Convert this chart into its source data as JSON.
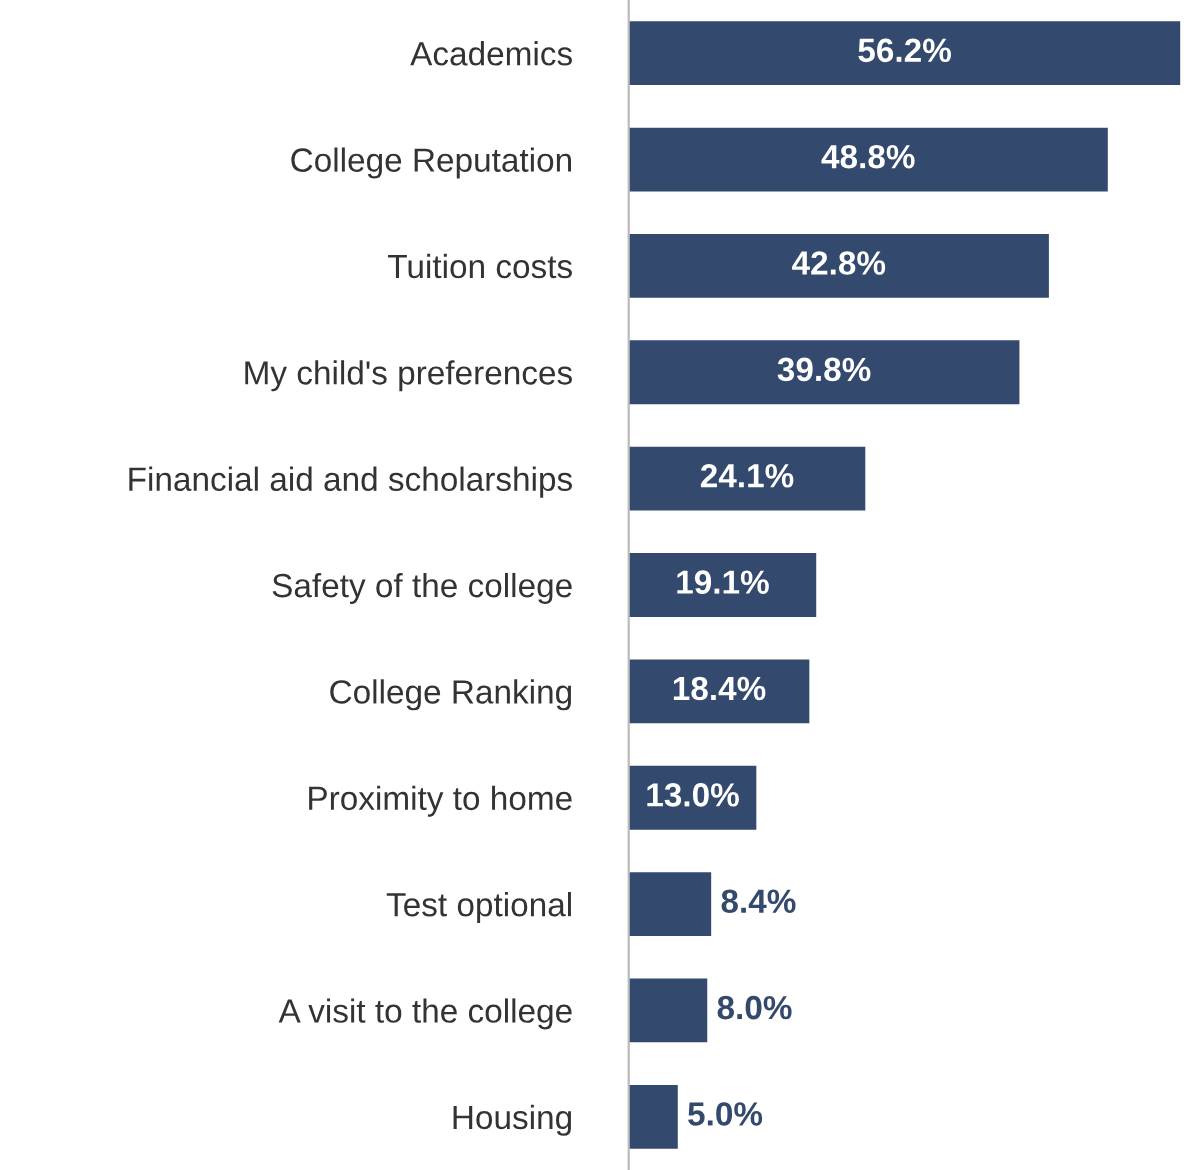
{
  "chart_data": {
    "type": "bar",
    "orientation": "horizontal",
    "categories": [
      "Academics",
      "College Reputation",
      "Tuition costs",
      "My child's preferences",
      "Financial aid and scholarships",
      "Safety of the college",
      "College Ranking",
      "Proximity to home",
      "Test optional",
      "A visit to the college",
      "Housing"
    ],
    "values": [
      56.2,
      48.8,
      42.8,
      39.8,
      24.1,
      19.1,
      18.4,
      13.0,
      8.4,
      8.0,
      5.0
    ],
    "value_labels": [
      "56.2%",
      "48.8%",
      "42.8%",
      "39.8%",
      "24.1%",
      "19.1%",
      "18.4%",
      "13.0%",
      "8.4%",
      "8.0%",
      "5.0%"
    ],
    "color": "#34496e",
    "tick_labels": "y"
  }
}
